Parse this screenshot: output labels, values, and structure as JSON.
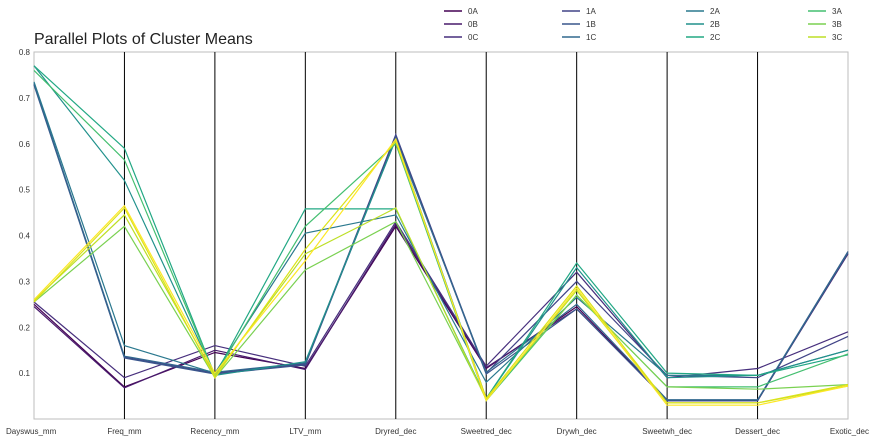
{
  "chart_data": {
    "type": "line",
    "title": "Parallel Plots of Cluster Means",
    "xlabel": "",
    "ylabel": "",
    "categories": [
      "Dayswus_mm",
      "Freq_mm",
      "Recency_mm",
      "LTV_mm",
      "Dryred_dec",
      "Sweetred_dec",
      "Drywh_dec",
      "Sweetwh_dec",
      "Dessert_dec",
      "Exotic_dec"
    ],
    "ylim": [
      0.0,
      0.8
    ],
    "yticks": [
      "0.1",
      "0.2",
      "0.3",
      "0.4",
      "0.5",
      "0.6",
      "0.7",
      "0.8"
    ],
    "grid": "vertical lines at each category",
    "legend_position": "top, outside plot, 4 columns",
    "series": [
      {
        "name": "0A",
        "color": "#440154",
        "values": [
          0.25,
          0.07,
          0.145,
          0.11,
          0.42,
          0.11,
          0.245,
          0.04,
          0.04,
          0.365
        ]
      },
      {
        "name": "0B",
        "color": "#481a6c",
        "values": [
          0.245,
          0.068,
          0.15,
          0.108,
          0.425,
          0.112,
          0.24,
          0.04,
          0.04,
          0.36
        ]
      },
      {
        "name": "0C",
        "color": "#472f7d",
        "values": [
          0.255,
          0.09,
          0.16,
          0.115,
          0.43,
          0.115,
          0.32,
          0.09,
          0.11,
          0.19
        ]
      },
      {
        "name": "1A",
        "color": "#414487",
        "values": [
          0.73,
          0.135,
          0.1,
          0.12,
          0.62,
          0.1,
          0.3,
          0.095,
          0.09,
          0.18
        ]
      },
      {
        "name": "1B",
        "color": "#39568c",
        "values": [
          0.728,
          0.133,
          0.098,
          0.118,
          0.615,
          0.098,
          0.24,
          0.04,
          0.04,
          0.362
        ]
      },
      {
        "name": "1C",
        "color": "#31688e",
        "values": [
          0.732,
          0.137,
          0.102,
          0.122,
          0.61,
          0.102,
          0.25,
          0.042,
          0.042,
          0.365
        ]
      },
      {
        "name": "2A",
        "color": "#2a788e",
        "values": [
          0.735,
          0.16,
          0.1,
          0.405,
          0.445,
          0.08,
          0.265,
          0.095,
          0.095,
          0.15
        ]
      },
      {
        "name": "2B",
        "color": "#21918c",
        "values": [
          0.77,
          0.52,
          0.095,
          0.125,
          0.61,
          0.045,
          0.33,
          0.09,
          0.095,
          0.15
        ]
      },
      {
        "name": "2C",
        "color": "#22a884",
        "values": [
          0.77,
          0.59,
          0.095,
          0.458,
          0.458,
          0.045,
          0.34,
          0.1,
          0.095,
          0.14
        ]
      },
      {
        "name": "3A",
        "color": "#44bf70",
        "values": [
          0.76,
          0.565,
          0.095,
          0.42,
          0.6,
          0.04,
          0.27,
          0.07,
          0.07,
          0.142
        ]
      },
      {
        "name": "3B",
        "color": "#7ad151",
        "values": [
          0.255,
          0.42,
          0.09,
          0.325,
          0.43,
          0.045,
          0.27,
          0.07,
          0.065,
          0.075
        ]
      },
      {
        "name": "3C",
        "color": "#bddf26",
        "values": [
          0.258,
          0.445,
          0.095,
          0.36,
          0.46,
          0.042,
          0.28,
          0.035,
          0.035,
          0.072
        ]
      },
      {
        "name": "",
        "color": "#dce319",
        "values": [
          0.255,
          0.46,
          0.09,
          0.37,
          0.605,
          0.045,
          0.29,
          0.035,
          0.035,
          0.075
        ]
      },
      {
        "name": "",
        "color": "#fde725",
        "values": [
          0.26,
          0.465,
          0.1,
          0.345,
          0.61,
          0.04,
          0.285,
          0.03,
          0.03,
          0.072
        ]
      }
    ]
  }
}
